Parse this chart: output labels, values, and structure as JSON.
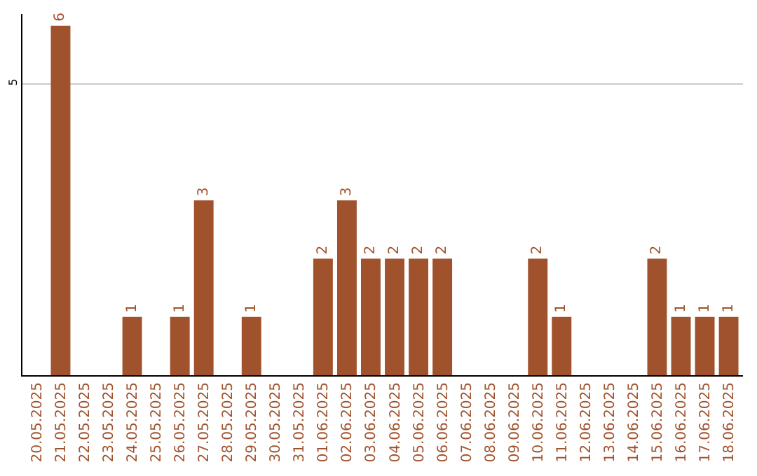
{
  "chart_data": {
    "type": "bar",
    "categories": [
      "20.05.2025",
      "21.05.2025",
      "22.05.2025",
      "23.05.2025",
      "24.05.2025",
      "25.05.2025",
      "26.05.2025",
      "27.05.2025",
      "28.05.2025",
      "29.05.2025",
      "30.05.2025",
      "31.05.2025",
      "01.06.2025",
      "02.06.2025",
      "03.06.2025",
      "04.06.2025",
      "05.06.2025",
      "06.06.2025",
      "07.06.2025",
      "08.06.2025",
      "09.06.2025",
      "10.06.2025",
      "11.06.2025",
      "12.06.2025",
      "13.06.2025",
      "14.06.2025",
      "15.06.2025",
      "16.06.2025",
      "17.06.2025",
      "18.06.2025"
    ],
    "values": [
      null,
      6,
      null,
      null,
      1,
      null,
      1,
      3,
      null,
      1,
      null,
      null,
      2,
      3,
      2,
      2,
      2,
      2,
      null,
      null,
      null,
      2,
      1,
      null,
      null,
      null,
      2,
      1,
      1,
      1
    ],
    "color": "#a0522d",
    "data_labels": true,
    "ylim": [
      0,
      6.2
    ],
    "yticks": [
      5
    ],
    "grid": "y"
  }
}
